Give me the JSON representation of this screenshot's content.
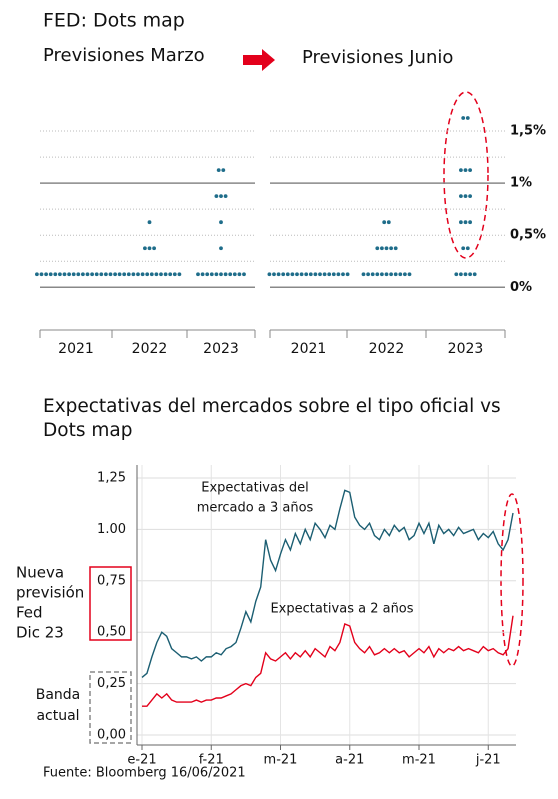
{
  "title": "FED: Dots map",
  "source": "Fuente: Bloomberg 16/06/2021",
  "chart_data": [
    {
      "type": "dot_plot",
      "title": "Previsiones Marzo",
      "color": "#1f6d8a",
      "categories": [
        "2021",
        "2022",
        "2023"
      ],
      "dots": [
        {
          "levels": [
            0.125
          ],
          "counts": [
            18
          ]
        },
        {
          "levels": [
            0.125,
            0.375,
            0.625
          ],
          "counts": [
            14,
            3,
            1
          ]
        },
        {
          "levels": [
            0.125,
            0.375,
            0.625,
            0.875,
            1.125
          ],
          "counts": [
            11,
            1,
            1,
            3,
            2
          ]
        }
      ],
      "ylim": [
        -0.41,
        1.75
      ],
      "major_lines": [
        0,
        1
      ],
      "minor_lines": [
        0.25,
        0.5,
        0.75,
        1.25,
        1.5
      ]
    },
    {
      "type": "dot_plot",
      "title": "Previsiones Junio",
      "color": "#1f6d8a",
      "categories": [
        "2021",
        "2022",
        "2023"
      ],
      "dots": [
        {
          "levels": [
            0.125
          ],
          "counts": [
            18
          ]
        },
        {
          "levels": [
            0.125,
            0.375,
            0.625
          ],
          "counts": [
            11,
            5,
            2
          ]
        },
        {
          "levels": [
            0.125,
            0.375,
            0.625,
            0.875,
            1.125,
            1.625
          ],
          "counts": [
            5,
            2,
            3,
            3,
            3,
            2
          ]
        }
      ],
      "ylim": [
        -0.41,
        1.75
      ],
      "major_lines": [
        0,
        1
      ],
      "minor_lines": [
        0.25,
        0.5,
        0.75,
        1.25,
        1.5
      ],
      "yticks": [
        {
          "value": 0,
          "label": "0%"
        },
        {
          "value": 0.5,
          "label": "0,5%"
        },
        {
          "value": 1,
          "label": "1%"
        },
        {
          "value": 1.5,
          "label": "1,5%"
        }
      ]
    },
    {
      "type": "line",
      "title": [
        "Expectativas del mercados sobre el tipo oficial vs",
        "Dots map"
      ],
      "ylim": [
        0,
        1.25
      ],
      "yticks": [
        {
          "value": 1.25,
          "label": "1,25"
        },
        {
          "value": 1,
          "label": "1.00"
        },
        {
          "value": 0.75,
          "label": "0,75"
        },
        {
          "value": 0.5,
          "label": "0,50"
        },
        {
          "value": 0.25,
          "label": "0,25"
        },
        {
          "value": 0,
          "label": "0,00"
        }
      ],
      "xlim": [
        0,
        75
      ],
      "xticks": [
        {
          "value": 0,
          "label": "e-21"
        },
        {
          "value": 14,
          "label": "f-21"
        },
        {
          "value": 28,
          "label": "m-21"
        },
        {
          "value": 42,
          "label": "a-21"
        },
        {
          "value": 56,
          "label": "m-21"
        },
        {
          "value": 70,
          "label": "j-21"
        }
      ],
      "series": [
        {
          "name": [
            "Expectativas del",
            "mercado  a 3 años"
          ],
          "color": "#1b5e72",
          "values": [
            0.28,
            0.3,
            0.38,
            0.45,
            0.5,
            0.48,
            0.42,
            0.4,
            0.38,
            0.38,
            0.37,
            0.38,
            0.36,
            0.38,
            0.38,
            0.4,
            0.39,
            0.42,
            0.43,
            0.45,
            0.52,
            0.6,
            0.55,
            0.65,
            0.72,
            0.95,
            0.85,
            0.8,
            0.88,
            0.95,
            0.9,
            0.98,
            0.93,
            1.0,
            0.95,
            1.03,
            1.0,
            0.96,
            1.02,
            1.0,
            1.1,
            1.19,
            1.18,
            1.06,
            1.02,
            1.0,
            1.03,
            0.97,
            0.95,
            1.0,
            0.97,
            1.02,
            0.99,
            1.01,
            0.95,
            0.97,
            1.03,
            0.98,
            1.03,
            0.93,
            1.02,
            0.98,
            1.0,
            0.97,
            1.01,
            0.98,
            0.99,
            1.0,
            0.95,
            0.98,
            0.96,
            0.99,
            0.93,
            0.9,
            0.95,
            1.08
          ]
        },
        {
          "name": [
            "Expectativas a 2 años"
          ],
          "color": "#e3001b",
          "values": [
            0.14,
            0.14,
            0.17,
            0.2,
            0.18,
            0.2,
            0.17,
            0.16,
            0.16,
            0.16,
            0.16,
            0.17,
            0.16,
            0.17,
            0.17,
            0.18,
            0.18,
            0.19,
            0.2,
            0.22,
            0.24,
            0.25,
            0.24,
            0.28,
            0.3,
            0.4,
            0.37,
            0.36,
            0.38,
            0.4,
            0.37,
            0.4,
            0.38,
            0.41,
            0.38,
            0.42,
            0.4,
            0.38,
            0.43,
            0.41,
            0.45,
            0.54,
            0.53,
            0.45,
            0.42,
            0.4,
            0.43,
            0.39,
            0.4,
            0.42,
            0.4,
            0.42,
            0.4,
            0.41,
            0.38,
            0.4,
            0.42,
            0.4,
            0.43,
            0.38,
            0.42,
            0.4,
            0.42,
            0.41,
            0.43,
            0.41,
            0.42,
            0.41,
            0.4,
            0.43,
            0.41,
            0.42,
            0.4,
            0.39,
            0.42,
            0.58
          ]
        }
      ],
      "side_labels": [
        [
          "Nueva",
          "previsión",
          "Fed",
          "Dic 23"
        ],
        [
          "Banda",
          "actual"
        ]
      ]
    }
  ]
}
